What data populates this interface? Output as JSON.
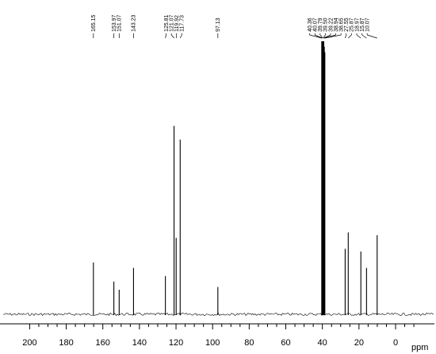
{
  "chart_data": {
    "type": "line",
    "subtype": "13C NMR spectrum",
    "xlabel": "ppm",
    "x_reversed": true,
    "xlim": [
      210,
      -10
    ],
    "x_ticks": [
      "200",
      "180",
      "160",
      "140",
      "120",
      "100",
      "80",
      "60",
      "40",
      "20",
      "0"
    ],
    "peak_labels": [
      "165.15",
      "153.97",
      "151.07",
      "143.23",
      "125.81",
      "121.07",
      "119.92",
      "117.73",
      "97.13",
      "40.36",
      "40.07",
      "39.79",
      "39.50",
      "39.22",
      "38.94",
      "38.65",
      "27.55",
      "25.87",
      "18.97",
      "15.87",
      "10.07"
    ],
    "peaks": [
      {
        "ppm": 165.15,
        "rel_height": 0.19
      },
      {
        "ppm": 153.97,
        "rel_height": 0.12
      },
      {
        "ppm": 151.07,
        "rel_height": 0.09
      },
      {
        "ppm": 143.23,
        "rel_height": 0.17
      },
      {
        "ppm": 125.81,
        "rel_height": 0.14
      },
      {
        "ppm": 121.07,
        "rel_height": 0.69
      },
      {
        "ppm": 119.92,
        "rel_height": 0.28
      },
      {
        "ppm": 117.73,
        "rel_height": 0.64
      },
      {
        "ppm": 97.13,
        "rel_height": 0.1
      },
      {
        "ppm": 40.36,
        "rel_height": 1.0
      },
      {
        "ppm": 40.07,
        "rel_height": 1.0
      },
      {
        "ppm": 39.79,
        "rel_height": 1.0
      },
      {
        "ppm": 39.5,
        "rel_height": 1.0
      },
      {
        "ppm": 39.22,
        "rel_height": 1.0
      },
      {
        "ppm": 38.94,
        "rel_height": 0.98
      },
      {
        "ppm": 38.65,
        "rel_height": 0.96
      },
      {
        "ppm": 27.55,
        "rel_height": 0.24
      },
      {
        "ppm": 25.87,
        "rel_height": 0.3
      },
      {
        "ppm": 18.97,
        "rel_height": 0.23
      },
      {
        "ppm": 15.87,
        "rel_height": 0.17
      },
      {
        "ppm": 10.07,
        "rel_height": 0.29
      }
    ],
    "label_groups": [
      {
        "labels": [
          0
        ]
      },
      {
        "labels": [
          1,
          2
        ]
      },
      {
        "labels": [
          3
        ]
      },
      {
        "labels": [
          4,
          5,
          6,
          7
        ]
      },
      {
        "labels": [
          8
        ]
      },
      {
        "labels": [
          9,
          10,
          11,
          12,
          13,
          14,
          15,
          16,
          17,
          18,
          19,
          20
        ]
      }
    ],
    "grid": false,
    "colors": {
      "trace": "#000000",
      "background": "#ffffff"
    }
  }
}
